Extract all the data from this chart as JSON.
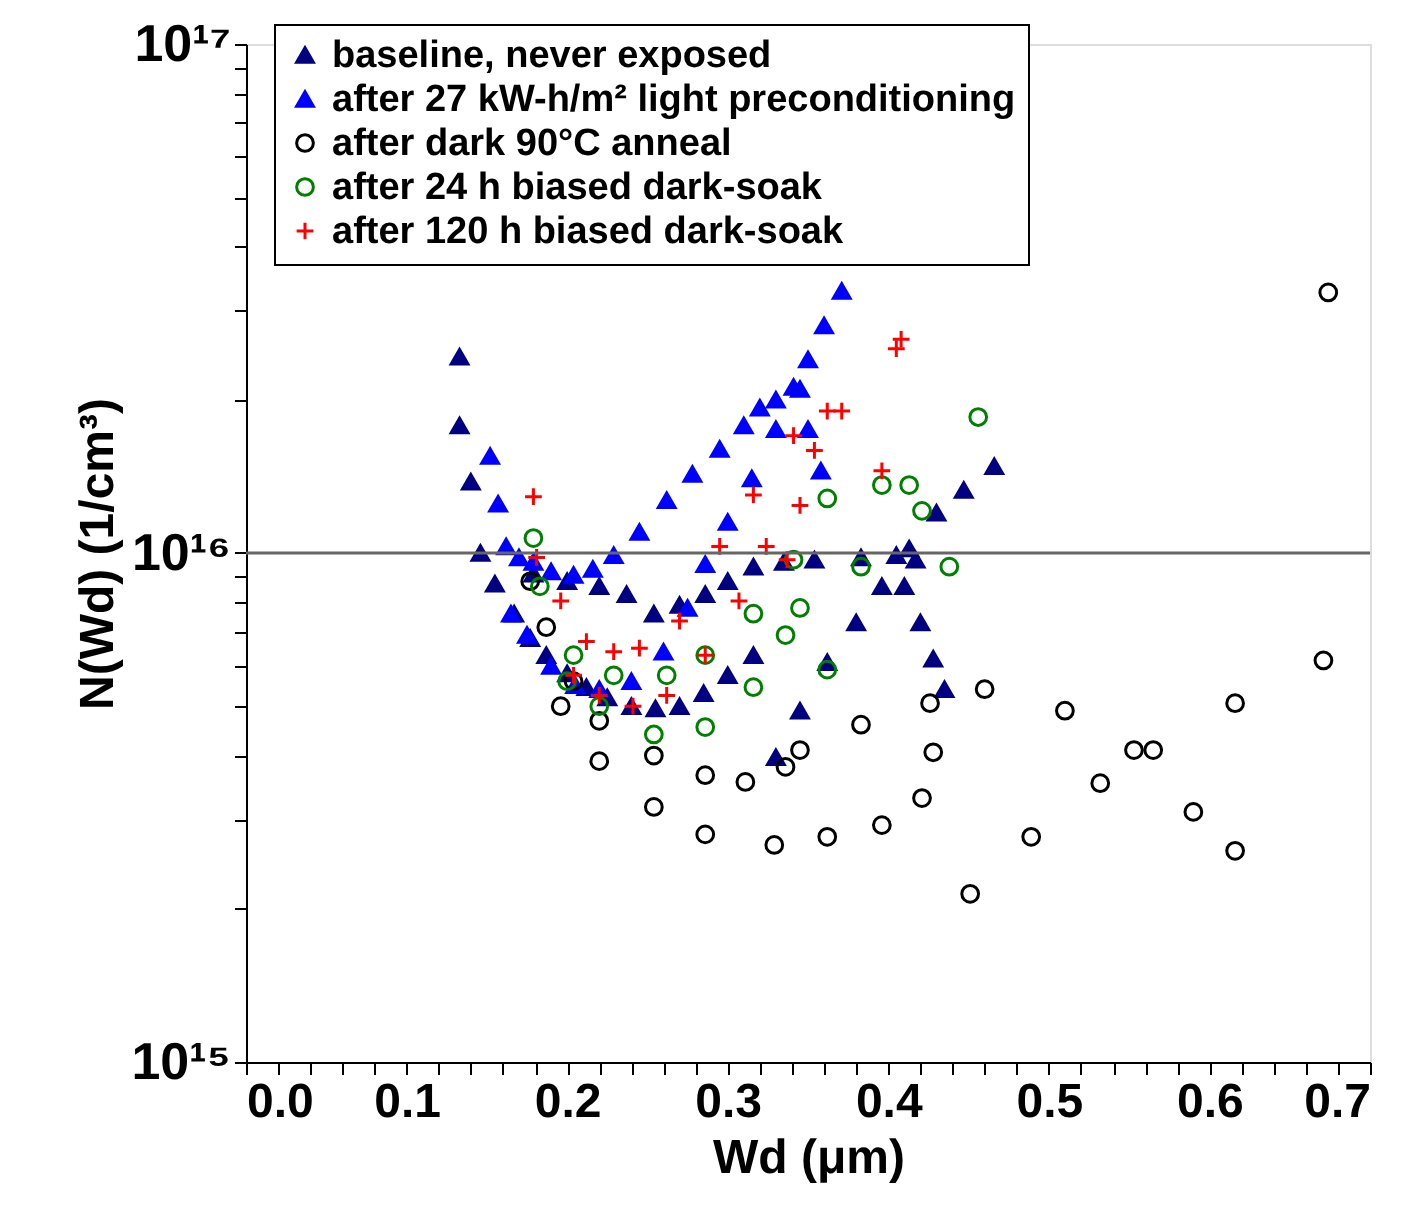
{
  "chart_data": {
    "type": "scatter",
    "xlabel": "Wd (μm)",
    "ylabel": "N(Wd) (1/cm³)",
    "log": "y",
    "legend": "top left",
    "grid": false,
    "xlim": [
      0,
      0.7
    ],
    "ylim": [
      1000000000000000.0,
      1e+17
    ],
    "xticks": [
      {
        "value": 0,
        "label": "0.0"
      },
      {
        "value": 0.02,
        "label": null
      },
      {
        "value": 0.04,
        "label": null
      },
      {
        "value": 0.06,
        "label": null
      },
      {
        "value": 0.08,
        "label": null
      },
      0.1,
      {
        "value": 0.12,
        "label": null
      },
      {
        "value": 0.14,
        "label": null
      },
      {
        "value": 0.16,
        "label": null
      },
      {
        "value": 0.18,
        "label": null
      },
      0.2,
      {
        "value": 0.22,
        "label": null
      },
      {
        "value": 0.24,
        "label": null
      },
      {
        "value": 0.26,
        "label": null
      },
      {
        "value": 0.28,
        "label": null
      },
      0.3,
      {
        "value": 0.32,
        "label": null
      },
      {
        "value": 0.34,
        "label": null
      },
      {
        "value": 0.36,
        "label": null
      },
      {
        "value": 0.38,
        "label": null
      },
      0.4,
      {
        "value": 0.42,
        "label": null
      },
      {
        "value": 0.44,
        "label": null
      },
      {
        "value": 0.46,
        "label": null
      },
      {
        "value": 0.48,
        "label": null
      },
      0.5,
      {
        "value": 0.52,
        "label": null
      },
      {
        "value": 0.54,
        "label": null
      },
      {
        "value": 0.56,
        "label": null
      },
      {
        "value": 0.58,
        "label": null
      },
      0.6,
      {
        "value": 0.62,
        "label": null
      },
      {
        "value": 0.64,
        "label": null
      },
      {
        "value": 0.66,
        "label": null
      },
      {
        "value": 0.68,
        "label": null
      },
      0.7
    ],
    "yticks": [
      {
        "value": 1000000000000000.0,
        "label": "10¹⁵"
      },
      {
        "value": 2000000000000000.0,
        "label": null
      },
      {
        "value": 3000000000000000.0,
        "label": null
      },
      {
        "value": 4000000000000000.0,
        "label": null
      },
      {
        "value": 5000000000000000.0,
        "label": null
      },
      {
        "value": 6000000000000000.0,
        "label": null
      },
      {
        "value": 7000000000000000.0,
        "label": null
      },
      {
        "value": 8000000000000000.0,
        "label": null
      },
      {
        "value": 9000000000000000.0,
        "label": null
      },
      {
        "value": 1e+16,
        "label": "10¹⁶"
      },
      {
        "value": 2e+16,
        "label": null
      },
      {
        "value": 3e+16,
        "label": null
      },
      {
        "value": 4e+16,
        "label": null
      },
      {
        "value": 5e+16,
        "label": null
      },
      {
        "value": 6e+16,
        "label": null
      },
      {
        "value": 7e+16,
        "label": null
      },
      {
        "value": 8e+16,
        "label": null
      },
      {
        "value": 9e+16,
        "label": null
      },
      {
        "value": 1e+17,
        "label": "10¹⁷"
      }
    ],
    "ref_lines": [
      {
        "axis": "y",
        "value": 1e+16,
        "color": "#666666"
      }
    ],
    "series": [
      {
        "name": "baseline, never exposed",
        "color": "#000080",
        "marker": "triangle",
        "x": [
          0.133,
          0.14,
          0.146,
          0.155,
          0.167,
          0.177,
          0.187,
          0.2,
          0.212,
          0.225,
          0.24,
          0.255,
          0.27,
          0.285,
          0.3,
          0.316,
          0.133,
          0.179,
          0.2,
          0.22,
          0.237,
          0.254,
          0.27,
          0.286,
          0.3,
          0.316,
          0.335,
          0.354,
          0.383,
          0.405,
          0.417,
          0.41,
          0.42,
          0.428,
          0.435,
          0.33,
          0.345,
          0.362,
          0.38,
          0.396,
          0.413,
          0.43,
          0.447,
          0.466
        ],
        "values": [
          1.78e+16,
          1.38e+16,
          1e+16,
          8700000000000000.0,
          7600000000000000.0,
          6800000000000000.0,
          6300000000000000.0,
          5800000000000000.0,
          5450000000000000.0,
          5200000000000000.0,
          5000000000000000.0,
          4950000000000000.0,
          5000000000000000.0,
          5300000000000000.0,
          5750000000000000.0,
          6300000000000000.0,
          2.43e+16,
          9100000000000000.0,
          8800000000000000.0,
          8600000000000000.0,
          8300000000000000.0,
          7600000000000000.0,
          7900000000000000.0,
          8300000000000000.0,
          8800000000000000.0,
          9400000000000000.0,
          9600000000000000.0,
          9700000000000000.0,
          9800000000000000.0,
          9900000000000000.0,
          9700000000000000.0,
          8600000000000000.0,
          7300000000000000.0,
          6200000000000000.0,
          5400000000000000.0,
          3970000000000000.0,
          4900000000000000.0,
          6100000000000000.0,
          7300000000000000.0,
          8600000000000000.0,
          1.02e+16,
          1.2e+16,
          1.33e+16,
          1.48e+16
        ]
      },
      {
        "name": "after 27 kW-h/m² light preconditioning",
        "color": "#0000ff",
        "marker": "triangle",
        "x": [
          0.152,
          0.157,
          0.162,
          0.17,
          0.179,
          0.19,
          0.204,
          0.216,
          0.229,
          0.245,
          0.262,
          0.278,
          0.295,
          0.31,
          0.32,
          0.33,
          0.341,
          0.35,
          0.36,
          0.371,
          0.165,
          0.175,
          0.19,
          0.205,
          0.22,
          0.24,
          0.26,
          0.275,
          0.286,
          0.3,
          0.315,
          0.33,
          0.345,
          0.35,
          0.358
        ],
        "values": [
          1.55e+16,
          1.25e+16,
          1.03e+16,
          9800000000000000.0,
          9600000000000000.0,
          9200000000000000.0,
          9050000000000000.0,
          9300000000000000.0,
          9900000000000000.0,
          1.1e+16,
          1.27e+16,
          1.43e+16,
          1.6e+16,
          1.78e+16,
          1.93e+16,
          2e+16,
          2.12e+16,
          2.4e+16,
          2.8e+16,
          3.27e+16,
          7600000000000000.0,
          6900000000000000.0,
          6000000000000000.0,
          5500000000000000.0,
          5400000000000000.0,
          5600000000000000.0,
          6400000000000000.0,
          7800000000000000.0,
          9500000000000000.0,
          1.15e+16,
          1.4e+16,
          1.75e+16,
          2.1e+16,
          1.75e+16,
          1.45e+16
        ]
      },
      {
        "name": "after dark 90°C anneal",
        "color": "#000000",
        "marker": "circle",
        "x": [
          0.177,
          0.187,
          0.204,
          0.22,
          0.254,
          0.286,
          0.311,
          0.336,
          0.345,
          0.383,
          0.426,
          0.46,
          0.51,
          0.553,
          0.59,
          0.616,
          0.196,
          0.22,
          0.254,
          0.286,
          0.329,
          0.362,
          0.396,
          0.421,
          0.451,
          0.489,
          0.532,
          0.565,
          0.616,
          0.671,
          0.674,
          0.428
        ],
        "values": [
          8800000000000000.0,
          7150000000000000.0,
          5600000000000000.0,
          4680000000000000.0,
          4000000000000000.0,
          3660000000000000.0,
          3550000000000000.0,
          3800000000000000.0,
          4100000000000000.0,
          4600000000000000.0,
          5070000000000000.0,
          5400000000000000.0,
          4900000000000000.0,
          4100000000000000.0,
          3100000000000000.0,
          2600000000000000.0,
          5000000000000000.0,
          3900000000000000.0,
          3170000000000000.0,
          2800000000000000.0,
          2670000000000000.0,
          2770000000000000.0,
          2920000000000000.0,
          3300000000000000.0,
          2140000000000000.0,
          2770000000000000.0,
          3530000000000000.0,
          4100000000000000.0,
          5070000000000000.0,
          6150000000000000.0,
          3.25e+16,
          4060000000000000.0
        ]
      },
      {
        "name": "after 24 h biased dark-soak",
        "color": "#008000",
        "marker": "circle",
        "x": [
          0.179,
          0.183,
          0.204,
          0.229,
          0.262,
          0.286,
          0.316,
          0.341,
          0.362,
          0.396,
          0.421,
          0.438,
          0.2,
          0.22,
          0.254,
          0.286,
          0.316,
          0.336,
          0.345,
          0.362,
          0.383,
          0.413,
          0.456
        ],
        "values": [
          1.07e+16,
          8600000000000000.0,
          6300000000000000.0,
          5750000000000000.0,
          5750000000000000.0,
          6300000000000000.0,
          7600000000000000.0,
          9700000000000000.0,
          1.28e+16,
          1.36e+16,
          1.21e+16,
          9400000000000000.0,
          5600000000000000.0,
          5000000000000000.0,
          4400000000000000.0,
          4550000000000000.0,
          5450000000000000.0,
          6900000000000000.0,
          7800000000000000.0,
          5900000000000000.0,
          9400000000000000.0,
          1.36e+16,
          1.85e+16
        ]
      },
      {
        "name": "after 120 h biased dark-soak",
        "color": "#ff0000",
        "marker": "cross",
        "x": [
          0.179,
          0.181,
          0.196,
          0.212,
          0.229,
          0.245,
          0.27,
          0.295,
          0.316,
          0.341,
          0.362,
          0.405,
          0.408,
          0.204,
          0.22,
          0.241,
          0.262,
          0.286,
          0.307,
          0.324,
          0.337,
          0.345,
          0.354,
          0.371,
          0.396
        ],
        "values": [
          1.29e+16,
          9800000000000000.0,
          8050000000000000.0,
          6700000000000000.0,
          6400000000000000.0,
          6500000000000000.0,
          7350000000000000.0,
          1.03e+16,
          1.3e+16,
          1.7e+16,
          1.9e+16,
          2.52e+16,
          2.63e+16,
          5750000000000000.0,
          5250000000000000.0,
          5000000000000000.0,
          5250000000000000.0,
          6300000000000000.0,
          8050000000000000.0,
          1.03e+16,
          9700000000000000.0,
          1.24e+16,
          1.59e+16,
          1.9e+16,
          1.45e+16
        ]
      }
    ]
  }
}
